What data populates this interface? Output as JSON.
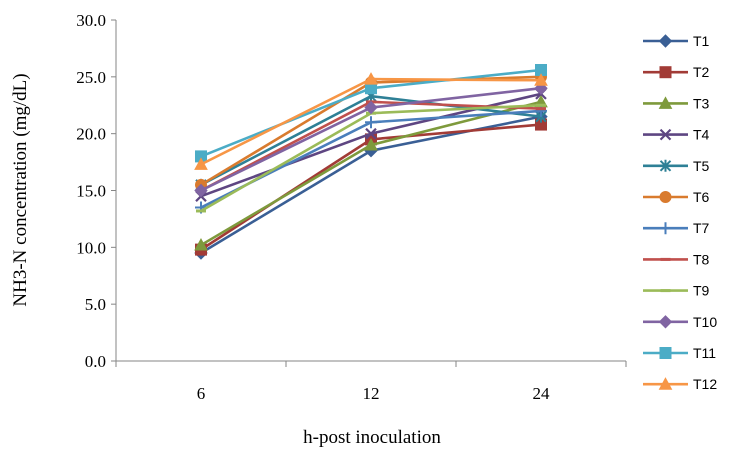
{
  "chart_data": {
    "type": "line",
    "categories": [
      "6",
      "12",
      "24"
    ],
    "ylabel": "NH3-N concentration (mg/dL)",
    "xlabel": "h-post inoculation",
    "ylim": [
      0,
      30
    ],
    "yticks": [
      "0.0",
      "5.0",
      "10.0",
      "15.0",
      "20.0",
      "25.0",
      "30.0"
    ],
    "grid": false,
    "legend_position": "right",
    "series": [
      {
        "name": "T1",
        "values": [
          9.5,
          18.5,
          21.5
        ],
        "color": "#3A5F95",
        "marker": "diamond"
      },
      {
        "name": "T2",
        "values": [
          9.8,
          19.5,
          20.8
        ],
        "color": "#A23B36",
        "marker": "square"
      },
      {
        "name": "T3",
        "values": [
          10.2,
          19.0,
          22.8
        ],
        "color": "#7E9A3C",
        "marker": "triangle"
      },
      {
        "name": "T4",
        "values": [
          14.5,
          20.0,
          23.5
        ],
        "color": "#5E4682",
        "marker": "x"
      },
      {
        "name": "T5",
        "values": [
          15.5,
          23.3,
          21.5
        ],
        "color": "#2E8096",
        "marker": "star"
      },
      {
        "name": "T6",
        "values": [
          15.5,
          24.5,
          25.0
        ],
        "color": "#D97B2E",
        "marker": "circle"
      },
      {
        "name": "T7",
        "values": [
          13.5,
          21.0,
          22.0
        ],
        "color": "#4A7EBB",
        "marker": "plus"
      },
      {
        "name": "T8",
        "values": [
          15.0,
          22.8,
          22.2
        ],
        "color": "#C0504D",
        "marker": "dash"
      },
      {
        "name": "T9",
        "values": [
          13.2,
          21.8,
          22.5
        ],
        "color": "#9BBB59",
        "marker": "dash"
      },
      {
        "name": "T10",
        "values": [
          15.0,
          22.3,
          24.0
        ],
        "color": "#8064A2",
        "marker": "diamond"
      },
      {
        "name": "T11",
        "values": [
          18.0,
          24.0,
          25.6
        ],
        "color": "#4BACC6",
        "marker": "square"
      },
      {
        "name": "T12",
        "values": [
          17.3,
          24.8,
          24.7
        ],
        "color": "#F79646",
        "marker": "triangle"
      }
    ]
  }
}
